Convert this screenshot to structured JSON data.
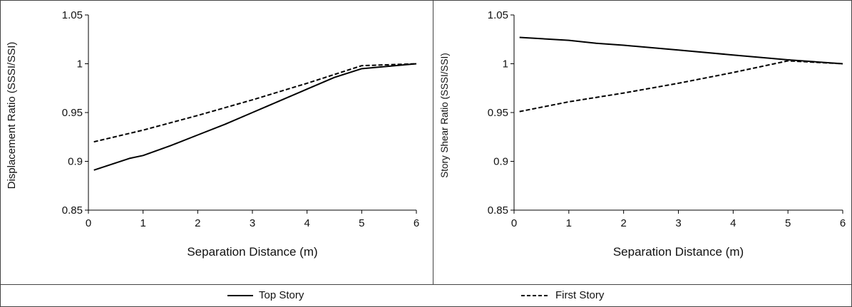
{
  "chart_data": [
    {
      "type": "line",
      "title": "",
      "xlabel": "Separation Distance (m)",
      "ylabel": "Displacement Ratio (SSSI/SSI)",
      "xlim": [
        0,
        6
      ],
      "ylim": [
        0.85,
        1.05
      ],
      "xticks": [
        "0",
        "1",
        "2",
        "3",
        "4",
        "5",
        "6"
      ],
      "yticks": [
        "0.85",
        "0.9",
        "0.95",
        "1",
        "1.05"
      ],
      "grid": false,
      "series": [
        {
          "name": "Top Story",
          "style": "solid",
          "x": [
            0.1,
            0.75,
            1,
            1.5,
            2,
            2.5,
            3,
            3.5,
            4,
            4.5,
            5,
            6
          ],
          "y": [
            0.891,
            0.903,
            0.906,
            0.916,
            0.927,
            0.938,
            0.95,
            0.962,
            0.974,
            0.986,
            0.995,
            1.0
          ]
        },
        {
          "name": "First Story",
          "style": "dashed",
          "x": [
            0.1,
            1,
            2,
            3,
            4,
            5,
            6
          ],
          "y": [
            0.92,
            0.932,
            0.947,
            0.963,
            0.98,
            0.998,
            1.0
          ]
        }
      ]
    },
    {
      "type": "line",
      "title": "",
      "xlabel": "Separation Distance (m)",
      "ylabel": "Story Shear Ratio (SSSI/SSI)",
      "xlim": [
        0,
        6
      ],
      "ylim": [
        0.85,
        1.05
      ],
      "xticks": [
        "0",
        "1",
        "2",
        "3",
        "4",
        "5",
        "6"
      ],
      "yticks": [
        "0.85",
        "0.9",
        "0.95",
        "1",
        "1.05"
      ],
      "grid": false,
      "series": [
        {
          "name": "Top Story",
          "style": "solid",
          "x": [
            0.1,
            1,
            1.5,
            2,
            3,
            4,
            5,
            6
          ],
          "y": [
            1.027,
            1.024,
            1.021,
            1.019,
            1.014,
            1.009,
            1.004,
            1.0
          ]
        },
        {
          "name": "First Story",
          "style": "dashed",
          "x": [
            0.1,
            1,
            2,
            3,
            4,
            5,
            6
          ],
          "y": [
            0.951,
            0.961,
            0.97,
            0.98,
            0.991,
            1.003,
            1.0
          ]
        }
      ]
    }
  ],
  "legend": {
    "placement": "bottom",
    "items": [
      {
        "label": "Top Story",
        "style": "solid"
      },
      {
        "label": "First Story",
        "style": "dashed"
      }
    ]
  }
}
